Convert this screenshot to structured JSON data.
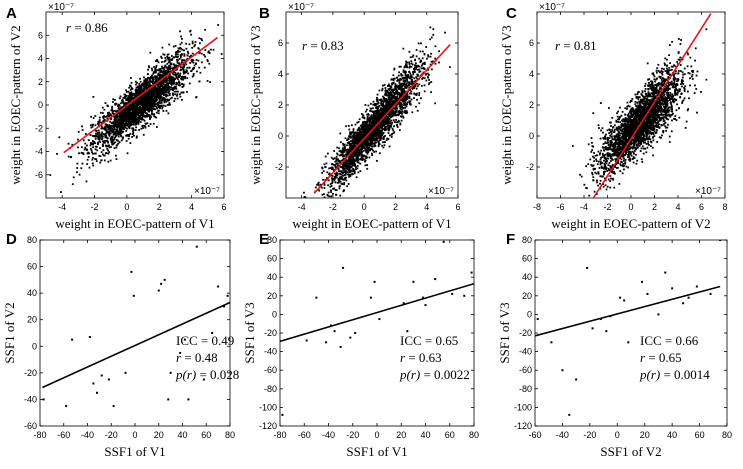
{
  "chart_data": [
    {
      "panel": "A",
      "type": "scatter",
      "xlabel": "weight in EOEC-pattern of V1",
      "ylabel": "weight in EOEC-pattern of V2",
      "xticks": [
        -4,
        -2,
        0,
        2,
        4,
        6
      ],
      "yticks": [
        -6,
        -4,
        -2,
        0,
        2,
        4,
        6
      ],
      "xlim": [
        -5,
        6
      ],
      "ylim": [
        -8,
        8
      ],
      "x_exponent": "×10⁻⁷",
      "y_exponent": "×10⁻⁷",
      "annotations": [
        {
          "label": "r",
          "value": "= 0.86"
        }
      ],
      "cloud": {
        "x_mean": 0.9,
        "x_sd": 1.5,
        "slope": 1.15,
        "intercept": -0.8,
        "noise": 1.2
      },
      "fit_line": {
        "x": [
          -3.9,
          5.6
        ],
        "y": [
          -4.1,
          5.8
        ],
        "color": "#e8141c"
      }
    },
    {
      "panel": "B",
      "type": "scatter",
      "xlabel": "weight in EOEC-pattern of V1",
      "ylabel": "weight in EOEC-pattern of V3",
      "xticks": [
        -4,
        -2,
        0,
        2,
        4,
        6
      ],
      "yticks": [
        -2,
        0,
        2,
        4,
        6
      ],
      "xlim": [
        -5,
        6
      ],
      "ylim": [
        -4,
        8
      ],
      "x_exponent": "×10⁻⁷",
      "y_exponent": "×10⁻⁷",
      "annotations": [
        {
          "label": "r",
          "value": "= 0.83"
        }
      ],
      "cloud": {
        "x_mean": 0.7,
        "x_sd": 1.5,
        "slope": 1.2,
        "intercept": -0.2,
        "noise": 0.9
      },
      "fit_line": {
        "x": [
          -3.2,
          5.5
        ],
        "y": [
          -3.7,
          5.9
        ],
        "color": "#e8141c"
      }
    },
    {
      "panel": "C",
      "type": "scatter",
      "xlabel": "weight in EOEC-pattern of V2",
      "ylabel": "weight in EOEC-pattern of V3",
      "xticks": [
        -8,
        -6,
        -4,
        -2,
        0,
        2,
        4,
        6,
        8
      ],
      "yticks": [
        -2,
        0,
        2,
        4,
        6
      ],
      "xlim": [
        -8,
        8
      ],
      "ylim": [
        -4,
        8
      ],
      "x_exponent": "×10⁻⁷",
      "y_exponent": "×10⁻⁷",
      "annotations": [
        {
          "label": "r",
          "value": "= 0.81"
        }
      ],
      "cloud": {
        "x_mean": 0.8,
        "x_sd": 1.7,
        "slope": 0.75,
        "intercept": 0.3,
        "noise": 1.1
      },
      "fit_line": {
        "x": [
          -3.2,
          6.8
        ],
        "y": [
          -4.0,
          7.9
        ],
        "color": "#e8141c"
      }
    },
    {
      "panel": "D",
      "type": "scatter",
      "xlabel": "SSF1 of V1",
      "ylabel": "SSF1 of V2",
      "xticks": [
        -80,
        -60,
        -40,
        -20,
        0,
        20,
        40,
        60,
        80
      ],
      "yticks": [
        -60,
        -40,
        -20,
        0,
        20,
        40,
        60,
        80
      ],
      "xlim": [
        -80,
        80
      ],
      "ylim": [
        -60,
        80
      ],
      "points": {
        "x": [
          -77,
          -58,
          -53,
          -38,
          -35,
          -32,
          -28,
          -22,
          -18,
          -8,
          -3,
          -1,
          20,
          22,
          25,
          28,
          30,
          38,
          42,
          45,
          52,
          58,
          65,
          70,
          75,
          78
        ],
        "y": [
          -40,
          -45,
          5,
          7,
          -28,
          -35,
          -22,
          -25,
          -45,
          -20,
          56,
          38,
          42,
          47,
          50,
          -40,
          -20,
          -5,
          5,
          -40,
          75,
          -25,
          10,
          45,
          30,
          38
        ]
      },
      "fit_line": {
        "x": [
          -78,
          80
        ],
        "y": [
          -31,
          33
        ],
        "color": "#000000"
      },
      "stats": [
        {
          "label": "ICC",
          "value": "= 0.49"
        },
        {
          "label": "r",
          "value": "= 0.48"
        },
        {
          "label": "p(r)",
          "value": "= 0.028"
        }
      ]
    },
    {
      "panel": "E",
      "type": "scatter",
      "xlabel": "SSF1 of V1",
      "ylabel": "SSF1 of V3",
      "xticks": [
        -80,
        -60,
        -40,
        -20,
        0,
        20,
        40,
        60,
        80
      ],
      "yticks": [
        -120,
        -100,
        -80,
        -60,
        -40,
        -20,
        0,
        20,
        40,
        60,
        80
      ],
      "xlim": [
        -80,
        80
      ],
      "ylim": [
        -120,
        80
      ],
      "points": {
        "x": [
          -78,
          -58,
          -50,
          -42,
          -38,
          -35,
          -30,
          -28,
          -22,
          -18,
          -5,
          -2,
          2,
          22,
          25,
          30,
          38,
          40,
          48,
          55,
          62,
          72,
          78
        ],
        "y": [
          -108,
          -28,
          18,
          -30,
          -12,
          -18,
          -35,
          50,
          -25,
          -20,
          18,
          35,
          -5,
          12,
          -18,
          35,
          18,
          10,
          38,
          78,
          22,
          20,
          45
        ]
      },
      "fit_line": {
        "x": [
          -80,
          80
        ],
        "y": [
          -29,
          33
        ],
        "color": "#000000"
      },
      "stats": [
        {
          "label": "ICC",
          "value": "= 0.65"
        },
        {
          "label": "r",
          "value": "= 0.63"
        },
        {
          "label": "p(r)",
          "value": "= 0.0022"
        }
      ]
    },
    {
      "panel": "F",
      "type": "scatter",
      "xlabel": "SSF1 of V2",
      "ylabel": "SSF1 of V3",
      "xticks": [
        -60,
        -40,
        -20,
        0,
        20,
        40,
        60,
        80
      ],
      "yticks": [
        -120,
        -100,
        -80,
        -60,
        -40,
        -20,
        0,
        20,
        40,
        60,
        80
      ],
      "xlim": [
        -60,
        80
      ],
      "ylim": [
        -120,
        80
      ],
      "points": {
        "x": [
          -58,
          -48,
          -40,
          -35,
          -30,
          -22,
          -18,
          -12,
          -8,
          -5,
          2,
          5,
          8,
          18,
          22,
          30,
          35,
          40,
          48,
          52,
          58,
          68,
          75
        ],
        "y": [
          -5,
          -30,
          -60,
          -108,
          -70,
          50,
          -15,
          -5,
          -18,
          -2,
          18,
          15,
          -30,
          35,
          22,
          0,
          45,
          28,
          12,
          18,
          30,
          22,
          80
        ]
      },
      "fit_line": {
        "x": [
          -60,
          75
        ],
        "y": [
          -23,
          30
        ],
        "color": "#000000"
      },
      "stats": [
        {
          "label": "ICC",
          "value": "= 0.66"
        },
        {
          "label": "r",
          "value": "= 0.65"
        },
        {
          "label": "p(r)",
          "value": "= 0.0014"
        }
      ]
    }
  ]
}
